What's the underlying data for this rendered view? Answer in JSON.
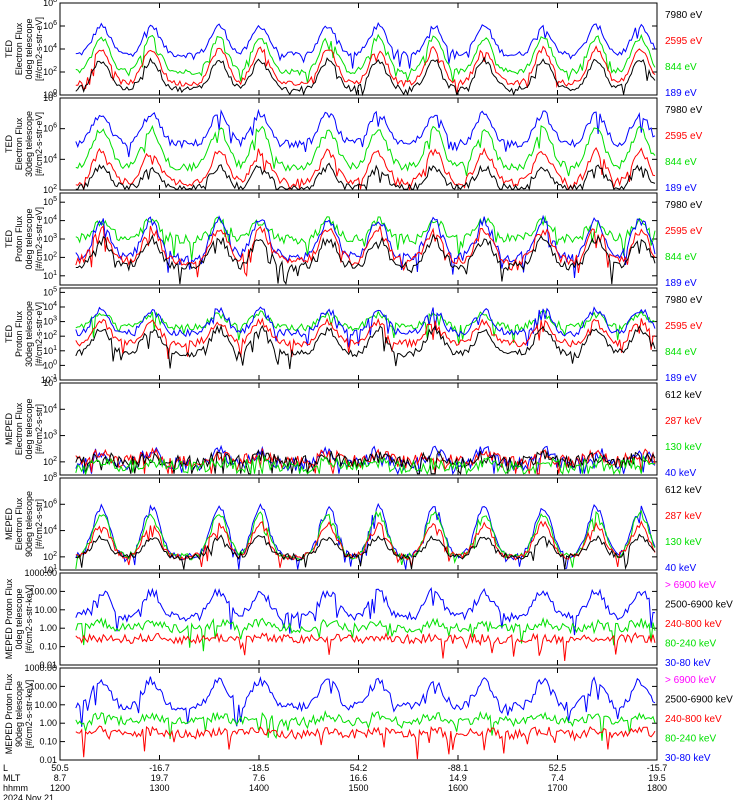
{
  "chart_data": {
    "type": "line",
    "date": "2024 Nov 21",
    "x_rows": [
      {
        "name": "L",
        "values": [
          "50.5",
          "-16.7",
          "-18.5",
          "54.2",
          "-88.1",
          "52.5",
          "-15.7"
        ]
      },
      {
        "name": "MLT",
        "values": [
          "8.7",
          "19.7",
          "7.6",
          "16.6",
          "14.9",
          "7.4",
          "19.5"
        ]
      },
      {
        "name": "hhmm",
        "values": [
          "1200",
          "1300",
          "1400",
          "1500",
          "1600",
          "1700",
          "1800"
        ]
      }
    ],
    "xlim": [
      1200,
      1800
    ],
    "grid": false,
    "legend_position": "right",
    "panels": [
      {
        "ylabel": [
          "TED",
          "Electron Flux",
          "0deg telescope",
          "[#/cm2-s-str-eV]"
        ],
        "yscale": "log",
        "yticks": [
          "10^0",
          "10^2",
          "10^4",
          "10^6",
          "10^8"
        ],
        "ylim_exp": [
          0,
          8
        ],
        "legend": [
          {
            "name": "7980 eV",
            "color": "#000000"
          },
          {
            "name": "2595 eV",
            "color": "#ff0000"
          },
          {
            "name": "844 eV",
            "color": "#00e000"
          },
          {
            "name": "189 eV",
            "color": "#0000ff"
          }
        ],
        "series": [
          {
            "name": "189 eV",
            "base": 3.5,
            "peak": 6.0
          },
          {
            "name": "844 eV",
            "base": 2.0,
            "peak": 5.0
          },
          {
            "name": "2595 eV",
            "base": 1.0,
            "peak": 4.0
          },
          {
            "name": "7980 eV",
            "base": 0.5,
            "peak": 3.0
          }
        ]
      },
      {
        "ylabel": [
          "TED",
          "Electron Flux",
          "30deg telescope",
          "[#/cm2-s-str-eV]"
        ],
        "yscale": "log",
        "yticks": [
          "10^2",
          "10^4",
          "10^6",
          "10^8"
        ],
        "ylim_exp": [
          2,
          8
        ],
        "legend": [
          {
            "name": "7980 eV",
            "color": "#000000"
          },
          {
            "name": "2595 eV",
            "color": "#ff0000"
          },
          {
            "name": "844 eV",
            "color": "#00e000"
          },
          {
            "name": "189 eV",
            "color": "#0000ff"
          }
        ],
        "series": [
          {
            "name": "189 eV",
            "base": 5.0,
            "peak": 7.0
          },
          {
            "name": "844 eV",
            "base": 3.5,
            "peak": 6.0
          },
          {
            "name": "2595 eV",
            "base": 2.5,
            "peak": 4.5
          },
          {
            "name": "7980 eV",
            "base": 2.1,
            "peak": 3.5
          }
        ]
      },
      {
        "ylabel": [
          "TED",
          "Proton Flux",
          "0deg telescope",
          "[#/cm2-s-str-eV]"
        ],
        "yscale": "log",
        "yticks": [
          "10^1",
          "10^2",
          "10^3",
          "10^4",
          "10^5"
        ],
        "ylim_exp": [
          0.5,
          5.5
        ],
        "legend": [
          {
            "name": "7980 eV",
            "color": "#000000"
          },
          {
            "name": "2595 eV",
            "color": "#ff0000"
          },
          {
            "name": "844 eV",
            "color": "#00e000"
          },
          {
            "name": "189 eV",
            "color": "#0000ff"
          }
        ],
        "series": [
          {
            "name": "844 eV",
            "base": 3.0,
            "peak": 4.0
          },
          {
            "name": "189 eV",
            "base": 2.0,
            "peak": 4.0
          },
          {
            "name": "2595 eV",
            "base": 1.8,
            "peak": 3.5
          },
          {
            "name": "7980 eV",
            "base": 1.5,
            "peak": 3.0
          }
        ]
      },
      {
        "ylabel": [
          "TED",
          "Proton Flux",
          "30deg telescope",
          "[#/cm2-s-str-eV]"
        ],
        "yscale": "log",
        "yticks": [
          "10^-1",
          "10^0",
          "10^1",
          "10^2",
          "10^3",
          "10^4",
          "10^5"
        ],
        "ylim_exp": [
          -1,
          5.3
        ],
        "legend": [
          {
            "name": "7980 eV",
            "color": "#000000"
          },
          {
            "name": "2595 eV",
            "color": "#ff0000"
          },
          {
            "name": "844 eV",
            "color": "#00e000"
          },
          {
            "name": "189 eV",
            "color": "#0000ff"
          }
        ],
        "series": [
          {
            "name": "844 eV",
            "base": 2.6,
            "peak": 3.5
          },
          {
            "name": "189 eV",
            "base": 2.2,
            "peak": 3.8
          },
          {
            "name": "2595 eV",
            "base": 1.5,
            "peak": 3.0
          },
          {
            "name": "7980 eV",
            "base": 0.8,
            "peak": 2.5
          }
        ]
      },
      {
        "ylabel": [
          "MEPED",
          "Electron Flux",
          "0deg telescope",
          "[#/cm2-s-str]"
        ],
        "yscale": "log",
        "yticks": [
          "10^2",
          "10^3",
          "10^4",
          "10^5"
        ],
        "ylim_exp": [
          1.5,
          5.0
        ],
        "legend": [
          {
            "name": "612 keV",
            "color": "#000000"
          },
          {
            "name": "287 keV",
            "color": "#ff0000"
          },
          {
            "name": "130 keV",
            "color": "#00e000"
          },
          {
            "name": "40 keV",
            "color": "#0000ff"
          }
        ],
        "series": [
          {
            "name": "40 keV",
            "base": 1.9,
            "peak": 2.4
          },
          {
            "name": "287 keV",
            "base": 2.0,
            "peak": 2.3
          },
          {
            "name": "612 keV",
            "base": 2.0,
            "peak": 2.2
          },
          {
            "name": "130 keV",
            "base": 1.8,
            "peak": 2.0
          }
        ]
      },
      {
        "ylabel": [
          "MEPED",
          "Electron Flux",
          "90deg telescope",
          "[#/cm2-s-str]"
        ],
        "yscale": "log",
        "yticks": [
          "10^1",
          "10^2",
          "10^4",
          "10^6",
          "10^8"
        ],
        "ylim_exp": [
          1,
          8
        ],
        "legend": [
          {
            "name": "612 keV",
            "color": "#000000"
          },
          {
            "name": "287 keV",
            "color": "#ff0000"
          },
          {
            "name": "130 keV",
            "color": "#00e000"
          },
          {
            "name": "40 keV",
            "color": "#0000ff"
          }
        ],
        "series": [
          {
            "name": "40 keV",
            "base": 2.0,
            "peak": 5.8
          },
          {
            "name": "130 keV",
            "base": 2.0,
            "peak": 5.3
          },
          {
            "name": "287 keV",
            "base": 2.0,
            "peak": 4.5
          },
          {
            "name": "612 keV",
            "base": 2.0,
            "peak": 3.5
          }
        ]
      },
      {
        "ylabel": [
          "MEPED Proton Flux",
          "0deg telescope",
          "[#/cm2-s-str-keV]"
        ],
        "yscale": "log",
        "yticks": [
          "0.01",
          "0.10",
          "1.00",
          "10.00",
          "100.00",
          "1000.00"
        ],
        "ylim_exp": [
          -2,
          3
        ],
        "legend": [
          {
            "name": "> 6900 keV",
            "color": "#ff00ff"
          },
          {
            "name": "2500-6900 keV",
            "color": "#000000"
          },
          {
            "name": "240-800 keV",
            "color": "#ff0000"
          },
          {
            "name": "80-240 keV",
            "color": "#00e000"
          },
          {
            "name": "30-80 keV",
            "color": "#0000ff"
          }
        ],
        "series": [
          {
            "name": "30-80 keV",
            "base": 0.6,
            "peak": 2.0
          },
          {
            "name": "80-240 keV",
            "base": 0.0,
            "peak": 0.3
          },
          {
            "name": "240-800 keV",
            "base": -0.6,
            "peak": -0.5
          }
        ]
      },
      {
        "ylabel": [
          "MEPED Proton Flux",
          "90deg telescope",
          "[#/cm2-s-str-keV]"
        ],
        "yscale": "log",
        "yticks": [
          "0.01",
          "0.10",
          "1.00",
          "10.00",
          "100.00",
          "1000.00"
        ],
        "ylim_exp": [
          -2,
          3
        ],
        "legend": [
          {
            "name": "> 6900 keV",
            "color": "#ff00ff"
          },
          {
            "name": "2500-6900 keV",
            "color": "#000000"
          },
          {
            "name": "240-800 keV",
            "color": "#ff0000"
          },
          {
            "name": "80-240 keV",
            "color": "#00e000"
          },
          {
            "name": "30-80 keV",
            "color": "#0000ff"
          }
        ],
        "series": [
          {
            "name": "30-80 keV",
            "base": 0.9,
            "peak": 2.3
          },
          {
            "name": "80-240 keV",
            "base": 0.1,
            "peak": 0.4
          },
          {
            "name": "240-800 keV",
            "base": -0.6,
            "peak": -0.4
          }
        ]
      }
    ]
  }
}
